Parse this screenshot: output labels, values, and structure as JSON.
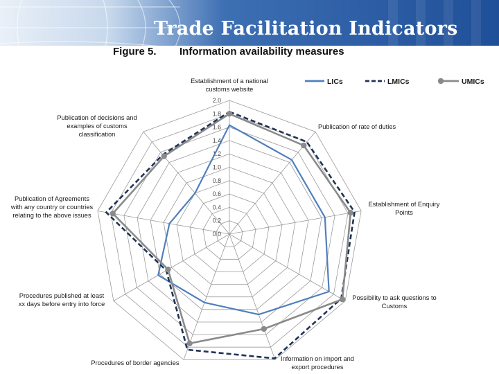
{
  "header": {
    "title": "Trade Facilitation Indicators"
  },
  "figure": {
    "number": "Figure 5.",
    "title": "Information availability measures"
  },
  "colors": {
    "LICs": "#4f7fbd",
    "LMICs": "#1f3356",
    "UMICs": "#8a8a8a",
    "grid": "#9a9a9a",
    "banner_dark": "#1f4f98"
  },
  "chart_data": {
    "type": "radar",
    "axes": [
      "Establishment of a national customs website",
      "Publication of rate of duties",
      "Establishment of Enquiry Points",
      "Possibility to ask questions to Customs",
      "Information on import and export procedures",
      "Procedures of border agencies",
      "Procedures published at least xx days before entry into force",
      "Publication of Agreements with any country or countries relating to the above issues",
      "Publication of decisions and examples of customs classification"
    ],
    "ticks": [
      "0.0",
      "0.2",
      "0.4",
      "0.6",
      "0.8",
      "1.0",
      "1.2",
      "1.4",
      "1.6",
      "1.8",
      "2.0"
    ],
    "range": [
      0,
      2.0
    ],
    "legend_position": "top-right",
    "series": [
      {
        "name": "LICs",
        "style": "solid",
        "values": [
          1.63,
          1.45,
          1.45,
          1.72,
          1.28,
          1.09,
          1.23,
          0.91,
          0.8
        ]
      },
      {
        "name": "LMICs",
        "style": "dashed",
        "values": [
          1.83,
          1.8,
          1.9,
          1.93,
          1.98,
          1.84,
          1.09,
          1.87,
          1.55
        ]
      },
      {
        "name": "UMICs",
        "style": "solid-marker",
        "values": [
          1.8,
          1.73,
          1.84,
          1.95,
          1.51,
          1.74,
          1.06,
          1.77,
          1.52
        ]
      }
    ]
  }
}
